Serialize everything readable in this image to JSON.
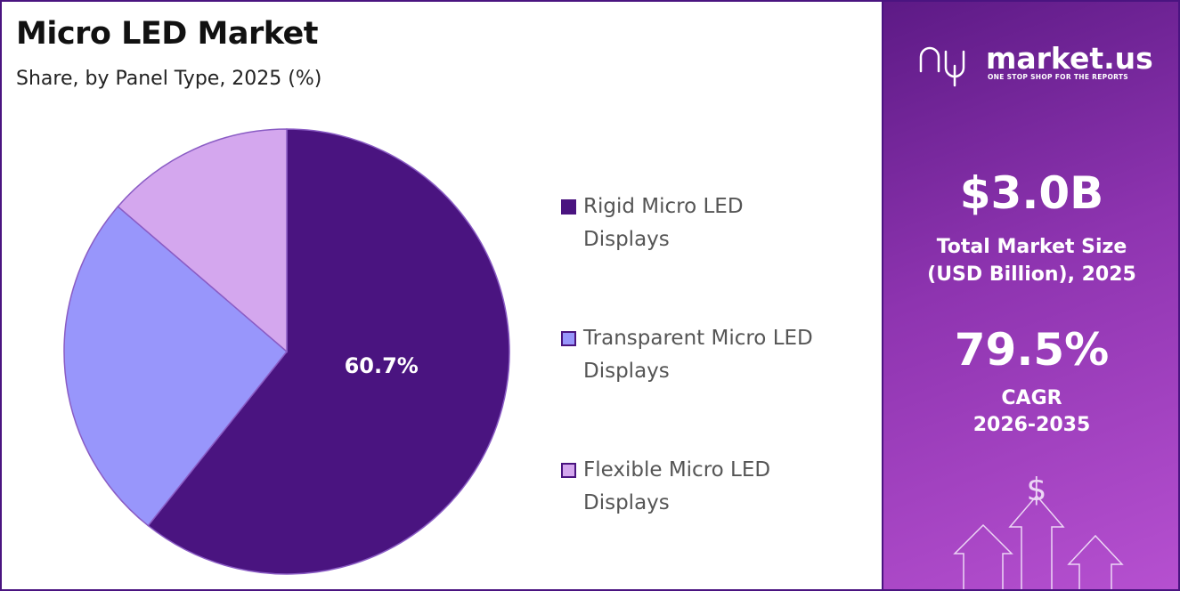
{
  "chart_data": {
    "type": "pie",
    "title": "Micro LED Market",
    "subtitle": "Share, by Panel Type, 2025 (%)",
    "categories": [
      "Rigid Micro LED Displays",
      "Transparent Micro LED Displays",
      "Flexible Micro LED Displays"
    ],
    "values": [
      60.7,
      25.6,
      13.7
    ],
    "value_labels": [
      "60.7%",
      null,
      null
    ],
    "colors": [
      "#4a1480",
      "#9896fb",
      "#d4a7ee"
    ],
    "legend": "right"
  },
  "side_panel": {
    "brand": "market.us",
    "tagline": "ONE STOP SHOP FOR THE REPORTS",
    "market_size": "$3.0B",
    "market_size_label": "Total Market Size (USD Billion), 2025",
    "cagr": "79.5%",
    "cagr_label": "CAGR",
    "cagr_period": "2026-2035"
  }
}
